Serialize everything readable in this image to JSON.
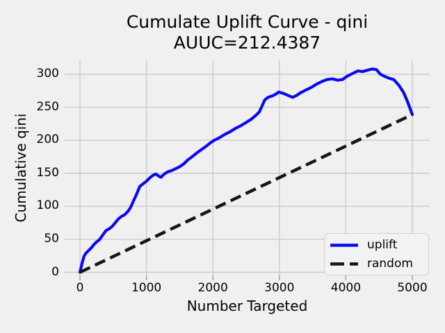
{
  "figure": {
    "background": "#f0f0f0",
    "grid_color": "#cbcbcb",
    "tick_color": "#9b9b9b"
  },
  "title": {
    "line1": "Cumulate Uplift Curve - qini",
    "line2": "AUUC=212.4387"
  },
  "auuc_value": "212.4387",
  "axes": {
    "xlabel": "Number Targeted",
    "ylabel": "Cumulative qini"
  },
  "legend": {
    "position": "lower right",
    "entries": [
      {
        "label": "uplift",
        "color": "#0a0af0",
        "style": "solid"
      },
      {
        "label": "random",
        "color": "#151515",
        "style": "dashed"
      }
    ]
  },
  "chart_data": {
    "type": "line",
    "title": "Cumulate Uplift Curve - qini",
    "subtitle": "AUUC=212.4387",
    "xlabel": "Number Targeted",
    "ylabel": "Cumulative qini",
    "x_ticks": [
      0,
      1000,
      2000,
      3000,
      4000,
      5000
    ],
    "y_ticks": [
      0,
      50,
      100,
      150,
      200,
      250,
      300
    ],
    "xlim": [
      -230,
      5260
    ],
    "ylim": [
      -5,
      321
    ],
    "grid": true,
    "legend_position": "lower right",
    "series": [
      {
        "name": "uplift",
        "color": "#0a0af0",
        "style": "solid",
        "points": [
          [
            0,
            0
          ],
          [
            30,
            13
          ],
          [
            60,
            24
          ],
          [
            90,
            29
          ],
          [
            130,
            33
          ],
          [
            170,
            37
          ],
          [
            210,
            42
          ],
          [
            250,
            46
          ],
          [
            290,
            49
          ],
          [
            340,
            56
          ],
          [
            390,
            63
          ],
          [
            440,
            66
          ],
          [
            480,
            69
          ],
          [
            530,
            75
          ],
          [
            580,
            81
          ],
          [
            630,
            85
          ],
          [
            670,
            87
          ],
          [
            720,
            92
          ],
          [
            760,
            98
          ],
          [
            800,
            107
          ],
          [
            850,
            118
          ],
          [
            900,
            130
          ],
          [
            950,
            134
          ],
          [
            1000,
            138
          ],
          [
            1050,
            143
          ],
          [
            1100,
            147
          ],
          [
            1140,
            149
          ],
          [
            1180,
            146
          ],
          [
            1220,
            144
          ],
          [
            1270,
            149
          ],
          [
            1320,
            152
          ],
          [
            1380,
            154
          ],
          [
            1440,
            157
          ],
          [
            1500,
            160
          ],
          [
            1560,
            164
          ],
          [
            1620,
            170
          ],
          [
            1700,
            176
          ],
          [
            1760,
            181
          ],
          [
            1830,
            186
          ],
          [
            1900,
            191
          ],
          [
            1960,
            196
          ],
          [
            2020,
            200
          ],
          [
            2100,
            204
          ],
          [
            2180,
            209
          ],
          [
            2260,
            213
          ],
          [
            2340,
            218
          ],
          [
            2420,
            222
          ],
          [
            2500,
            227
          ],
          [
            2580,
            232
          ],
          [
            2650,
            238
          ],
          [
            2700,
            243
          ],
          [
            2740,
            252
          ],
          [
            2780,
            261
          ],
          [
            2830,
            265
          ],
          [
            2890,
            267
          ],
          [
            2950,
            270
          ],
          [
            2990,
            273
          ],
          [
            3060,
            271
          ],
          [
            3130,
            268
          ],
          [
            3200,
            265
          ],
          [
            3260,
            268
          ],
          [
            3320,
            272
          ],
          [
            3400,
            276
          ],
          [
            3480,
            280
          ],
          [
            3560,
            285
          ],
          [
            3640,
            289
          ],
          [
            3720,
            292
          ],
          [
            3800,
            293
          ],
          [
            3880,
            291
          ],
          [
            3950,
            292
          ],
          [
            4020,
            297
          ],
          [
            4100,
            301
          ],
          [
            4180,
            305
          ],
          [
            4250,
            304
          ],
          [
            4320,
            306
          ],
          [
            4400,
            308
          ],
          [
            4460,
            307
          ],
          [
            4520,
            300
          ],
          [
            4580,
            297
          ],
          [
            4650,
            294
          ],
          [
            4720,
            292
          ],
          [
            4800,
            283
          ],
          [
            4870,
            272
          ],
          [
            4930,
            258
          ],
          [
            5000,
            239
          ]
        ]
      },
      {
        "name": "random",
        "color": "#151515",
        "style": "dashed",
        "points": [
          [
            0,
            0
          ],
          [
            5000,
            239
          ]
        ]
      }
    ]
  }
}
